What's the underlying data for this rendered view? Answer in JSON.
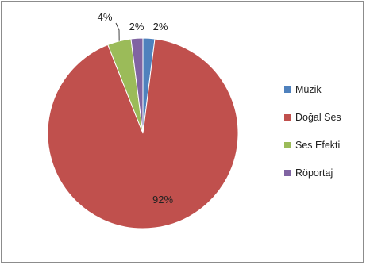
{
  "chart_data": {
    "type": "pie",
    "title": "",
    "categories": [
      "Müzik",
      "Doğal Ses",
      "Ses Efekti",
      "Röportaj"
    ],
    "values": [
      2,
      92,
      4,
      2
    ],
    "data_labels": [
      "2%",
      "92%",
      "4%",
      "2%"
    ],
    "colors": [
      "#4f81bd",
      "#c0504d",
      "#9bbb59",
      "#8064a2"
    ],
    "legend": {
      "position": "right"
    },
    "start": "12 o'clock, clockwise"
  }
}
